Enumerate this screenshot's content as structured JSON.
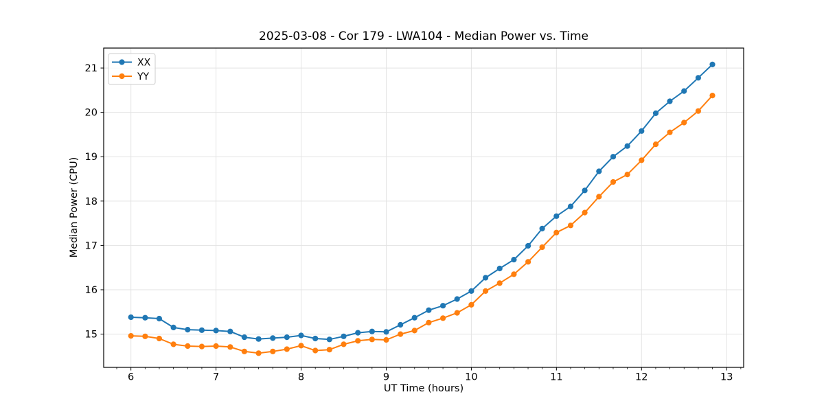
{
  "chart_data": {
    "type": "line",
    "title": "2025-03-08 - Cor 179 - LWA104 - Median Power vs. Time",
    "xlabel": "UT Time (hours)",
    "ylabel": "Median Power (CPU)",
    "xlim": [
      5.68,
      13.2
    ],
    "ylim": [
      14.25,
      21.45
    ],
    "x_major_ticks": [
      6,
      7,
      8,
      9,
      10,
      11,
      12,
      13
    ],
    "x_minor_step_hours": 0.1667,
    "y_major_ticks": [
      15,
      16,
      17,
      18,
      19,
      20,
      21
    ],
    "grid": true,
    "legend_position": "upper left",
    "x": [
      6.0,
      6.167,
      6.333,
      6.5,
      6.667,
      6.833,
      7.0,
      7.167,
      7.333,
      7.5,
      7.667,
      7.833,
      8.0,
      8.167,
      8.333,
      8.5,
      8.667,
      8.833,
      9.0,
      9.167,
      9.333,
      9.5,
      9.667,
      9.833,
      10.0,
      10.167,
      10.333,
      10.5,
      10.667,
      10.833,
      11.0,
      11.167,
      11.333,
      11.5,
      11.667,
      11.833,
      12.0,
      12.167,
      12.333,
      12.5,
      12.667,
      12.833
    ],
    "series": [
      {
        "name": "XX",
        "color": "#1f77b4",
        "values": [
          15.38,
          15.37,
          15.35,
          15.15,
          15.1,
          15.09,
          15.08,
          15.06,
          14.93,
          14.89,
          14.91,
          14.93,
          14.97,
          14.9,
          14.88,
          14.95,
          15.03,
          15.06,
          15.05,
          15.21,
          15.37,
          15.54,
          15.64,
          15.79,
          15.97,
          16.27,
          16.48,
          16.68,
          16.99,
          17.38,
          17.66,
          17.88,
          18.24,
          18.67,
          19.0,
          19.24,
          19.58,
          19.98,
          20.25,
          20.48,
          20.78,
          21.08
        ]
      },
      {
        "name": "YY",
        "color": "#ff7f0e",
        "values": [
          14.96,
          14.95,
          14.9,
          14.77,
          14.73,
          14.72,
          14.73,
          14.71,
          14.61,
          14.57,
          14.61,
          14.66,
          14.74,
          14.63,
          14.65,
          14.77,
          14.85,
          14.88,
          14.87,
          15.0,
          15.08,
          15.26,
          15.36,
          15.48,
          15.66,
          15.97,
          16.15,
          16.35,
          16.63,
          16.96,
          17.29,
          17.45,
          17.74,
          18.1,
          18.43,
          18.6,
          18.92,
          19.28,
          19.55,
          19.77,
          20.03,
          20.38
        ]
      }
    ]
  },
  "colors": {
    "background": "#ffffff",
    "grid": "#e3e3e3",
    "spine": "#000000",
    "legend_border": "#cccccc"
  }
}
